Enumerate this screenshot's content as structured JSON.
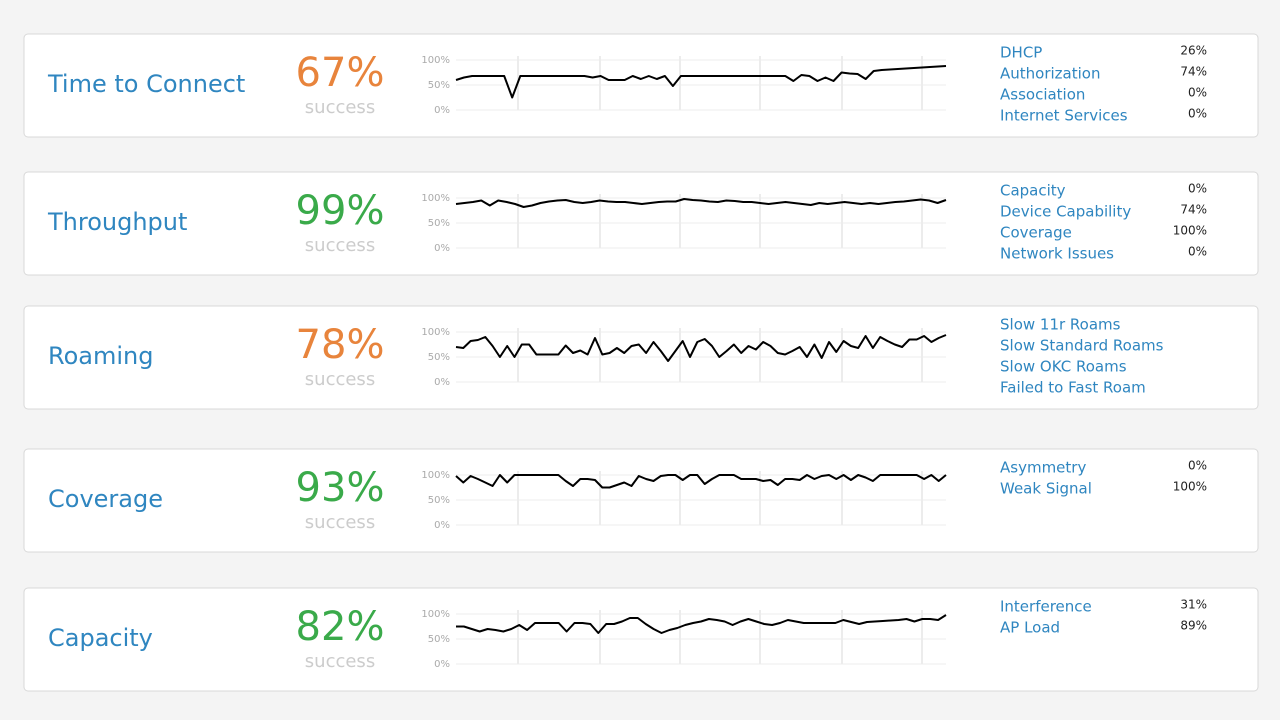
{
  "cards": [
    {
      "title": "Time to Connect",
      "percent": "67%",
      "status": "success",
      "color": "#e8843c",
      "chart": {
        "ylim": [
          0,
          100
        ],
        "yticks": [
          {
            "value": 0,
            "label": "0%"
          },
          {
            "value": 50,
            "label": "50%"
          },
          {
            "value": 100,
            "label": "100%"
          }
        ],
        "values": [
          60,
          65,
          68,
          68,
          68,
          68,
          68,
          25,
          68,
          68,
          68,
          68,
          68,
          68,
          68,
          68,
          68,
          65,
          68,
          60,
          60,
          60,
          68,
          62,
          68,
          62,
          68,
          48,
          68,
          68,
          68,
          68,
          68,
          68,
          68,
          68,
          68,
          68,
          68,
          68,
          68,
          68,
          58,
          70,
          68,
          58,
          65,
          58,
          75,
          73,
          72,
          62,
          78,
          80,
          81,
          82,
          83,
          84,
          85,
          86,
          87,
          88
        ]
      },
      "items": [
        {
          "label": "DHCP",
          "value": "26%"
        },
        {
          "label": "Authorization",
          "value": "74%"
        },
        {
          "label": "Association",
          "value": "0%"
        },
        {
          "label": "Internet Services",
          "value": "0%"
        }
      ]
    },
    {
      "title": "Throughput",
      "percent": "99%",
      "status": "success",
      "color": "#3aaa4a",
      "chart": {
        "ylim": [
          0,
          100
        ],
        "yticks": [
          {
            "value": 0,
            "label": "0%"
          },
          {
            "value": 50,
            "label": "50%"
          },
          {
            "value": 100,
            "label": "100%"
          }
        ],
        "values": [
          88,
          90,
          92,
          95,
          85,
          95,
          92,
          88,
          82,
          85,
          90,
          93,
          95,
          96,
          92,
          90,
          92,
          95,
          93,
          92,
          92,
          90,
          88,
          90,
          92,
          93,
          93,
          98,
          96,
          95,
          93,
          92,
          95,
          94,
          92,
          92,
          90,
          88,
          90,
          92,
          90,
          88,
          86,
          90,
          88,
          90,
          92,
          90,
          88,
          90,
          88,
          90,
          92,
          93,
          95,
          97,
          95,
          90,
          96
        ]
      },
      "items": [
        {
          "label": "Capacity",
          "value": "0%"
        },
        {
          "label": "Device Capability",
          "value": "74%"
        },
        {
          "label": "Coverage",
          "value": "100%"
        },
        {
          "label": "Network Issues",
          "value": "0%"
        }
      ]
    },
    {
      "title": "Roaming",
      "percent": "78%",
      "status": "success",
      "color": "#e8843c",
      "chart": {
        "ylim": [
          0,
          100
        ],
        "yticks": [
          {
            "value": 0,
            "label": "0%"
          },
          {
            "value": 50,
            "label": "50%"
          },
          {
            "value": 100,
            "label": "100%"
          }
        ],
        "values": [
          70,
          68,
          82,
          84,
          90,
          72,
          50,
          72,
          50,
          75,
          75,
          55,
          55,
          55,
          55,
          73,
          58,
          63,
          55,
          88,
          55,
          58,
          68,
          58,
          72,
          75,
          58,
          80,
          62,
          42,
          62,
          82,
          50,
          80,
          86,
          72,
          50,
          62,
          75,
          58,
          72,
          65,
          80,
          72,
          58,
          55,
          62,
          70,
          50,
          75,
          48,
          80,
          60,
          82,
          72,
          68,
          92,
          68,
          90,
          82,
          75,
          70,
          85,
          85,
          92,
          80,
          88,
          94
        ]
      },
      "items": [
        {
          "label": "Slow 11r Roams"
        },
        {
          "label": "Slow Standard Roams"
        },
        {
          "label": "Slow OKC Roams"
        },
        {
          "label": "Failed to Fast Roam"
        }
      ]
    },
    {
      "title": "Coverage",
      "percent": "93%",
      "status": "success",
      "color": "#3aaa4a",
      "chart": {
        "ylim": [
          0,
          100
        ],
        "yticks": [
          {
            "value": 0,
            "label": "0%"
          },
          {
            "value": 50,
            "label": "50%"
          },
          {
            "value": 100,
            "label": "100%"
          }
        ],
        "values": [
          98,
          85,
          98,
          92,
          85,
          78,
          100,
          85,
          100,
          100,
          100,
          100,
          100,
          100,
          100,
          88,
          78,
          92,
          92,
          90,
          75,
          75,
          80,
          85,
          78,
          98,
          92,
          88,
          98,
          100,
          100,
          90,
          100,
          100,
          82,
          92,
          100,
          100,
          100,
          92,
          92,
          92,
          88,
          90,
          80,
          92,
          92,
          90,
          100,
          92,
          98,
          100,
          92,
          100,
          90,
          100,
          95,
          88,
          100,
          100,
          100,
          100,
          100,
          100,
          92,
          100,
          88,
          100
        ]
      },
      "items": [
        {
          "label": "Asymmetry",
          "value": "0%"
        },
        {
          "label": "Weak Signal",
          "value": "100%"
        }
      ]
    },
    {
      "title": "Capacity",
      "percent": "82%",
      "status": "success",
      "color": "#3aaa4a",
      "chart": {
        "ylim": [
          0,
          100
        ],
        "yticks": [
          {
            "value": 0,
            "label": "0%"
          },
          {
            "value": 50,
            "label": "50%"
          },
          {
            "value": 100,
            "label": "100%"
          }
        ],
        "values": [
          75,
          75,
          70,
          65,
          70,
          68,
          65,
          70,
          78,
          68,
          82,
          82,
          82,
          82,
          65,
          82,
          82,
          80,
          62,
          80,
          80,
          85,
          92,
          92,
          80,
          70,
          62,
          68,
          72,
          78,
          82,
          85,
          90,
          88,
          85,
          78,
          85,
          90,
          85,
          80,
          78,
          82,
          88,
          85,
          82,
          82,
          82,
          82,
          82,
          88,
          84,
          80,
          84,
          85,
          86,
          87,
          88,
          90,
          85,
          90,
          90,
          88,
          98
        ]
      },
      "items": [
        {
          "label": "Interference",
          "value": "31%"
        },
        {
          "label": "AP Load",
          "value": "89%"
        }
      ]
    }
  ]
}
